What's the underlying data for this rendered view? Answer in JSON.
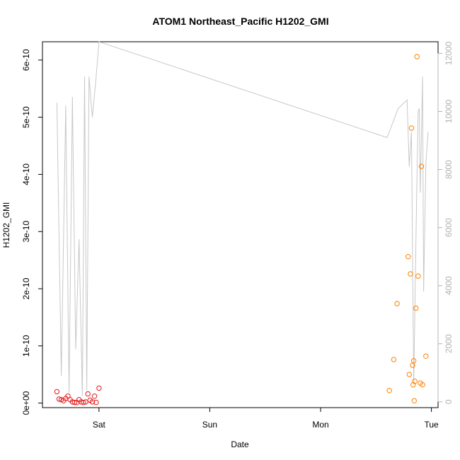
{
  "chart_data": {
    "type": "scatter",
    "title": "ATOM1 Northeast_Pacific H1202_GMI",
    "xlabel": "Date",
    "ylabel": "H1202_GMI",
    "x_ticks": [
      "Sat",
      "Sun",
      "Mon",
      "Tue"
    ],
    "x_tick_days": [
      1,
      2,
      3,
      4
    ],
    "x_range_days": [
      0.49,
      4.06
    ],
    "y_ticks": [
      "0e+00",
      "1e-10",
      "2e-10",
      "3e-10",
      "4e-10",
      "5e-10",
      "6e-10"
    ],
    "y_tick_values": [
      0,
      1e-10,
      2e-10,
      3e-10,
      4e-10,
      5e-10,
      6e-10
    ],
    "ylim": [
      -8e-12,
      6.32e-10
    ],
    "y2_ticks": [
      "0",
      "2000",
      "4000",
      "6000",
      "8000",
      "10000",
      "12000"
    ],
    "y2_tick_values": [
      0,
      2000,
      4000,
      6000,
      8000,
      10000,
      12000
    ],
    "y2lim": [
      -200,
      12400
    ],
    "colors": {
      "series_early": "#e41a1c",
      "series_late": "#ff7f00",
      "line": "#c8c8c8"
    },
    "series": [
      {
        "color": "#e41a1c",
        "x": [
          0.62,
          0.64,
          0.66,
          0.68,
          0.7,
          0.72,
          0.74,
          0.76,
          0.78,
          0.8,
          0.82,
          0.84,
          0.86,
          0.88,
          0.9,
          0.92,
          0.94,
          0.96,
          0.975,
          1.0
        ],
        "y": [
          2e-11,
          7e-12,
          6e-12,
          4e-12,
          8e-12,
          1.2e-11,
          6e-12,
          2e-12,
          1e-12,
          1e-12,
          6e-12,
          2e-12,
          1e-12,
          2e-12,
          1.6e-11,
          5e-12,
          2e-12,
          1.2e-11,
          1e-12,
          2.6e-11
        ]
      },
      {
        "color": "#ff7f00",
        "x": [
          3.62,
          3.66,
          3.69,
          3.79,
          3.8,
          3.81,
          3.82,
          3.83,
          3.835,
          3.84,
          3.845,
          3.85,
          3.86,
          3.87,
          3.88,
          3.9,
          3.91,
          3.92,
          3.95
        ],
        "y": [
          2.2e-11,
          7.6e-11,
          1.74e-10,
          2.56e-10,
          5e-11,
          2.26e-10,
          4.81e-10,
          6.6e-11,
          3.2e-11,
          7.4e-11,
          4e-12,
          3.8e-11,
          1.66e-10,
          6.06e-10,
          2.22e-10,
          3.5e-11,
          4.14e-10,
          3.2e-11,
          8.2e-11
        ]
      }
    ],
    "line_series": {
      "axis": "right",
      "color": "#c8c8c8",
      "x": [
        0.62,
        0.66,
        0.7,
        0.73,
        0.76,
        0.79,
        0.82,
        0.85,
        0.87,
        0.89,
        0.91,
        0.94,
        0.97,
        1.0,
        3.6,
        3.7,
        3.78,
        3.8,
        3.82,
        3.84,
        3.86,
        3.88,
        3.89,
        3.9,
        3.92,
        3.93,
        3.95,
        3.97
      ],
      "y": [
        10300,
        900,
        10200,
        300,
        10500,
        1800,
        5600,
        200,
        11200,
        400,
        11200,
        9800,
        11000,
        12400,
        9100,
        10100,
        10400,
        8100,
        9300,
        600,
        5500,
        10000,
        10100,
        7200,
        11200,
        3800,
        8200,
        9300
      ]
    }
  }
}
